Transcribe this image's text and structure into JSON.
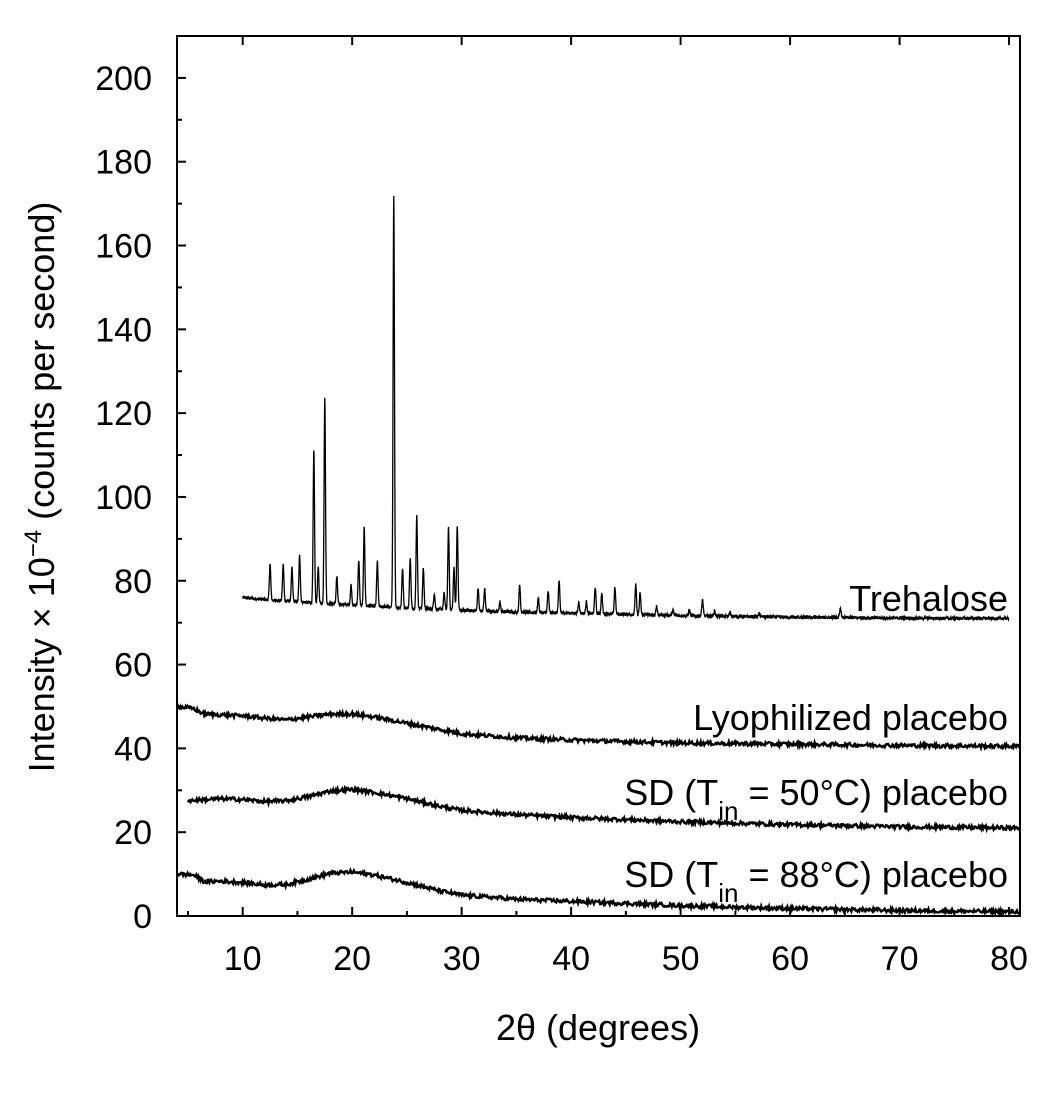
{
  "chart_data": {
    "type": "line",
    "xlabel": "2θ (degrees)",
    "ylabel": {
      "prefix": "Intensity × 10",
      "exponent": "−4",
      "suffix": " (counts per second)"
    },
    "xlim": [
      4,
      81
    ],
    "ylim": [
      0,
      210
    ],
    "x_ticks": [
      10,
      20,
      30,
      40,
      50,
      60,
      70,
      80
    ],
    "y_ticks": [
      0,
      20,
      40,
      60,
      80,
      100,
      120,
      140,
      160,
      180,
      200
    ],
    "x_tick_labels": [
      "10",
      "20",
      "30",
      "40",
      "50",
      "60",
      "70",
      "80"
    ],
    "y_tick_labels": [
      "0",
      "20",
      "40",
      "60",
      "80",
      "100",
      "120",
      "140",
      "160",
      "180",
      "200"
    ],
    "grid": false,
    "legend": "none",
    "series": [
      {
        "name": "Trehalose",
        "label": {
          "text": "Trehalose"
        },
        "x_range": [
          10,
          80
        ],
        "baseline": [
          [
            10,
            76
          ],
          [
            12,
            75.5
          ],
          [
            15,
            75
          ],
          [
            20,
            74.2
          ],
          [
            25,
            73.5
          ],
          [
            30,
            73
          ],
          [
            35,
            72.5
          ],
          [
            40,
            72.3
          ],
          [
            45,
            72
          ],
          [
            50,
            71.7
          ],
          [
            55,
            71.5
          ],
          [
            60,
            71.3
          ],
          [
            65,
            71.2
          ],
          [
            70,
            71.1
          ],
          [
            80,
            71
          ]
        ],
        "peaks": [
          [
            12.5,
            84
          ],
          [
            13.7,
            84
          ],
          [
            14.5,
            83
          ],
          [
            15.2,
            86
          ],
          [
            16.5,
            111
          ],
          [
            16.9,
            83
          ],
          [
            17.5,
            123.5
          ],
          [
            18.6,
            81
          ],
          [
            19.9,
            79
          ],
          [
            20.6,
            85
          ],
          [
            21.1,
            92.5
          ],
          [
            22.3,
            84.5
          ],
          [
            23.8,
            171.5
          ],
          [
            24.6,
            83
          ],
          [
            25.3,
            85.5
          ],
          [
            25.9,
            95.5
          ],
          [
            26.5,
            83
          ],
          [
            27.5,
            77
          ],
          [
            28.4,
            77
          ],
          [
            28.8,
            92.5
          ],
          [
            29.3,
            83
          ],
          [
            29.6,
            93
          ],
          [
            31.5,
            78
          ],
          [
            32.1,
            78
          ],
          [
            33.5,
            75
          ],
          [
            35.3,
            79
          ],
          [
            37,
            76
          ],
          [
            37.9,
            77.5
          ],
          [
            38.9,
            80
          ],
          [
            40.7,
            75
          ],
          [
            41.4,
            75
          ],
          [
            42.2,
            78.5
          ],
          [
            42.8,
            77
          ],
          [
            44,
            78.5
          ],
          [
            45.9,
            79
          ],
          [
            46.3,
            77
          ],
          [
            47.8,
            74
          ],
          [
            49.3,
            73
          ],
          [
            50.8,
            73
          ],
          [
            52,
            75.5
          ],
          [
            53.1,
            72.8
          ],
          [
            54.5,
            72.5
          ],
          [
            57.2,
            72.2
          ],
          [
            64.6,
            73.5
          ]
        ]
      },
      {
        "name": "Lyophilized placebo",
        "label": {
          "text": "Lyophilized placebo"
        },
        "x_range": [
          4,
          81
        ],
        "points": [
          [
            4,
            50
          ],
          [
            5.5,
            49.5
          ],
          [
            6.5,
            48.2
          ],
          [
            8,
            48
          ],
          [
            10,
            47.8
          ],
          [
            12,
            47.2
          ],
          [
            14,
            46.8
          ],
          [
            16,
            47.5
          ],
          [
            18,
            48.2
          ],
          [
            20,
            48.2
          ],
          [
            22,
            47.5
          ],
          [
            25,
            46
          ],
          [
            28,
            44.5
          ],
          [
            30,
            43.5
          ],
          [
            35,
            42.5
          ],
          [
            40,
            42
          ],
          [
            45,
            41.6
          ],
          [
            50,
            41.3
          ],
          [
            60,
            41
          ],
          [
            70,
            40.7
          ],
          [
            81,
            40.5
          ]
        ]
      },
      {
        "name": "SD (Tin = 50°C) placebo",
        "label": {
          "prefix": "SD (T",
          "subscript": "in",
          "suffix": " = 50°C) placebo"
        },
        "x_range": [
          5,
          81
        ],
        "points": [
          [
            5,
            27.5
          ],
          [
            8,
            28
          ],
          [
            10,
            27.8
          ],
          [
            12,
            27.3
          ],
          [
            14,
            27.5
          ],
          [
            16,
            28.5
          ],
          [
            18,
            29.8
          ],
          [
            20,
            30.2
          ],
          [
            22,
            29.5
          ],
          [
            25,
            28
          ],
          [
            28,
            26.2
          ],
          [
            30,
            25.2
          ],
          [
            35,
            24.2
          ],
          [
            40,
            23.5
          ],
          [
            45,
            23
          ],
          [
            50,
            22.5
          ],
          [
            60,
            21.8
          ],
          [
            70,
            21.3
          ],
          [
            81,
            21
          ]
        ]
      },
      {
        "name": "SD (Tin = 88°C) placebo",
        "label": {
          "prefix": "SD (T",
          "subscript": "in",
          "suffix": " = 88°C) placebo"
        },
        "x_range": [
          4,
          81
        ],
        "points": [
          [
            4,
            10
          ],
          [
            5.5,
            9.8
          ],
          [
            6.5,
            8.2
          ],
          [
            8,
            8.3
          ],
          [
            10,
            8
          ],
          [
            12,
            7.4
          ],
          [
            14,
            7.5
          ],
          [
            16,
            8.8
          ],
          [
            18,
            10.2
          ],
          [
            20,
            10.5
          ],
          [
            22,
            9.8
          ],
          [
            25,
            8
          ],
          [
            28,
            6
          ],
          [
            30,
            5
          ],
          [
            35,
            4
          ],
          [
            40,
            3.5
          ],
          [
            45,
            3
          ],
          [
            50,
            2.5
          ],
          [
            55,
            2.1
          ],
          [
            60,
            1.8
          ],
          [
            70,
            1.3
          ],
          [
            81,
            1
          ]
        ]
      }
    ]
  }
}
